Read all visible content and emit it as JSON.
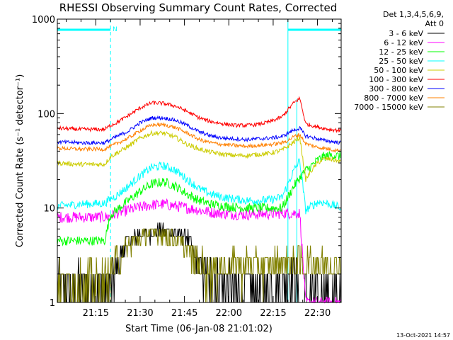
{
  "chart_data": {
    "type": "line",
    "title": "RHESSI Observing Summary Count Rates, Corrected",
    "xlabel": "Start Time (06-Jan-08 21:01:02)",
    "ylabel": "Corrected Count Rate (s⁻¹ detector⁻¹)",
    "y_scale": "log",
    "ylim": [
      1,
      1000
    ],
    "xlim_minutes_after_21_00": [
      2,
      98
    ],
    "x_ticks": [
      "21:15",
      "21:30",
      "21:45",
      "22:00",
      "22:15",
      "22:30"
    ],
    "y_ticks": [
      "1",
      "10",
      "100",
      "1000"
    ],
    "legend_header": [
      "Det 1,3,4,5,6,9,",
      "Att 0"
    ],
    "legend_placement": "right",
    "footer": "13-Oct-2021 14:57",
    "flag_label": "N",
    "flags": {
      "color": "#00ffff",
      "night_segments": [
        [
          2,
          20
        ],
        [
          80,
          98
        ]
      ],
      "markers": [
        2,
        20,
        80,
        98
      ],
      "saa_marker": 83
    },
    "series": [
      {
        "name": "3 - 6 keV",
        "color": "#000000",
        "t": [
          2,
          18,
          20,
          22,
          24,
          26,
          30,
          34,
          38,
          42,
          46,
          48,
          50,
          54,
          58,
          62,
          66,
          70,
          74,
          78,
          80,
          82,
          84,
          86,
          88,
          90,
          92,
          94,
          96,
          98
        ],
        "y": [
          1.5,
          1.5,
          1.5,
          2.2,
          3.5,
          4.5,
          5.3,
          5.6,
          5.8,
          5.5,
          4.8,
          3.5,
          2.5,
          1.8,
          1.5,
          1.4,
          1.4,
          1.4,
          1.5,
          1.6,
          2.0,
          2.3,
          1.0,
          1.0,
          1.0,
          1.0,
          1.0,
          1.0,
          1.0,
          1.0
        ]
      },
      {
        "name": "6 - 12 keV",
        "color": "#ff00ff",
        "t": [
          2,
          10,
          18,
          20,
          22,
          26,
          30,
          34,
          38,
          42,
          46,
          50,
          54,
          58,
          62,
          66,
          70,
          74,
          78,
          80,
          82,
          84,
          86,
          88,
          90,
          92,
          94,
          96,
          98
        ],
        "y": [
          8.0,
          8.0,
          8.0,
          8.2,
          8.8,
          9.5,
          10.2,
          10.8,
          11.0,
          10.5,
          10.0,
          9.5,
          9.0,
          8.8,
          8.6,
          8.5,
          8.6,
          8.7,
          8.8,
          8.8,
          8.8,
          8.8,
          1.0,
          1.0,
          1.0,
          1.0,
          1.0,
          1.0,
          1.0
        ]
      },
      {
        "name": "12 - 25 keV",
        "color": "#00ff00",
        "t": [
          2,
          10,
          18,
          20,
          22,
          26,
          30,
          34,
          38,
          42,
          46,
          50,
          54,
          58,
          62,
          66,
          70,
          74,
          78,
          80,
          82,
          84,
          86,
          88,
          90,
          92,
          94,
          96,
          98
        ],
        "y": [
          4.5,
          4.5,
          4.5,
          8.5,
          9.5,
          12,
          15,
          18,
          19,
          17,
          14,
          12,
          11,
          10.5,
          10.2,
          10,
          10,
          10,
          10,
          13,
          17,
          21,
          25,
          28,
          32,
          35,
          36,
          36,
          35
        ]
      },
      {
        "name": "25 - 50 keV",
        "color": "#00ffff",
        "t": [
          2,
          10,
          18,
          20,
          22,
          26,
          30,
          34,
          38,
          42,
          46,
          50,
          54,
          58,
          62,
          66,
          70,
          74,
          78,
          80,
          82,
          84,
          86,
          88,
          90,
          92,
          94,
          96,
          98
        ],
        "y": [
          10.5,
          11,
          11.2,
          12.5,
          13.5,
          17,
          22,
          27,
          28,
          25,
          20,
          16,
          14,
          13,
          12.5,
          12,
          12,
          12.2,
          13,
          18,
          25,
          32,
          9.5,
          10.5,
          11.5,
          11.5,
          11,
          10.5,
          10
        ]
      },
      {
        "name": "50 - 100 keV",
        "color": "#cccc00",
        "t": [
          2,
          10,
          18,
          20,
          22,
          26,
          30,
          34,
          38,
          42,
          46,
          50,
          54,
          58,
          62,
          66,
          70,
          74,
          78,
          80,
          82,
          84,
          86,
          88,
          90,
          92,
          94,
          96,
          98
        ],
        "y": [
          30,
          29,
          29,
          35,
          38,
          45,
          55,
          62,
          62,
          56,
          47,
          42,
          39,
          37,
          36,
          36,
          37,
          38,
          41,
          45,
          50,
          56,
          20,
          25,
          30,
          33,
          33,
          32,
          31
        ]
      },
      {
        "name": "100 - 300 keV",
        "color": "#ff0000",
        "t": [
          2,
          10,
          18,
          20,
          22,
          26,
          30,
          34,
          38,
          42,
          46,
          50,
          54,
          58,
          62,
          66,
          70,
          74,
          78,
          80,
          82,
          84,
          86,
          88,
          90,
          92,
          94,
          96,
          98
        ],
        "y": [
          70,
          68,
          68,
          75,
          80,
          95,
          115,
          130,
          128,
          120,
          105,
          90,
          82,
          78,
          75,
          75,
          77,
          82,
          92,
          110,
          130,
          145,
          78,
          75,
          72,
          70,
          68,
          67,
          66
        ]
      },
      {
        "name": "300 - 800 keV",
        "color": "#0000ff",
        "t": [
          2,
          10,
          18,
          20,
          22,
          26,
          30,
          34,
          38,
          42,
          46,
          50,
          54,
          58,
          62,
          66,
          70,
          74,
          78,
          80,
          82,
          84,
          86,
          88,
          90,
          92,
          94,
          96,
          98
        ],
        "y": [
          50,
          49,
          49,
          53,
          57,
          65,
          80,
          90,
          90,
          85,
          75,
          64,
          58,
          55,
          54,
          53,
          54,
          55,
          57,
          62,
          67,
          70,
          58,
          56,
          54,
          52,
          51,
          50,
          49
        ]
      },
      {
        "name": "800 - 7000 keV",
        "color": "#ff8000",
        "t": [
          2,
          10,
          18,
          20,
          22,
          26,
          30,
          34,
          38,
          42,
          46,
          50,
          54,
          58,
          62,
          66,
          70,
          74,
          78,
          80,
          82,
          84,
          86,
          88,
          90,
          92,
          94,
          96,
          98
        ],
        "y": [
          43,
          42,
          42,
          45,
          48,
          55,
          66,
          76,
          76,
          71,
          62,
          53,
          49,
          47,
          46,
          45,
          46,
          47,
          49,
          52,
          57,
          60,
          48,
          46,
          44,
          43,
          42,
          41,
          41
        ]
      },
      {
        "name": "7000 - 15000 keV",
        "color": "#808000",
        "t": [
          2,
          10,
          18,
          20,
          22,
          26,
          30,
          34,
          38,
          42,
          46,
          50,
          54,
          58,
          62,
          66,
          70,
          74,
          78,
          80,
          82,
          84,
          86,
          88,
          90,
          92,
          94,
          96,
          98
        ],
        "y": [
          1.6,
          1.6,
          1.6,
          2.0,
          2.8,
          4.0,
          5.0,
          5.5,
          5.3,
          4.6,
          3.6,
          2.6,
          2.3,
          2.5,
          2.5,
          2.6,
          2.5,
          2.6,
          2.6,
          2.7,
          2.7,
          2.7,
          2.7,
          2.6,
          2.6,
          2.6,
          2.6,
          2.6,
          2.6
        ]
      }
    ]
  }
}
